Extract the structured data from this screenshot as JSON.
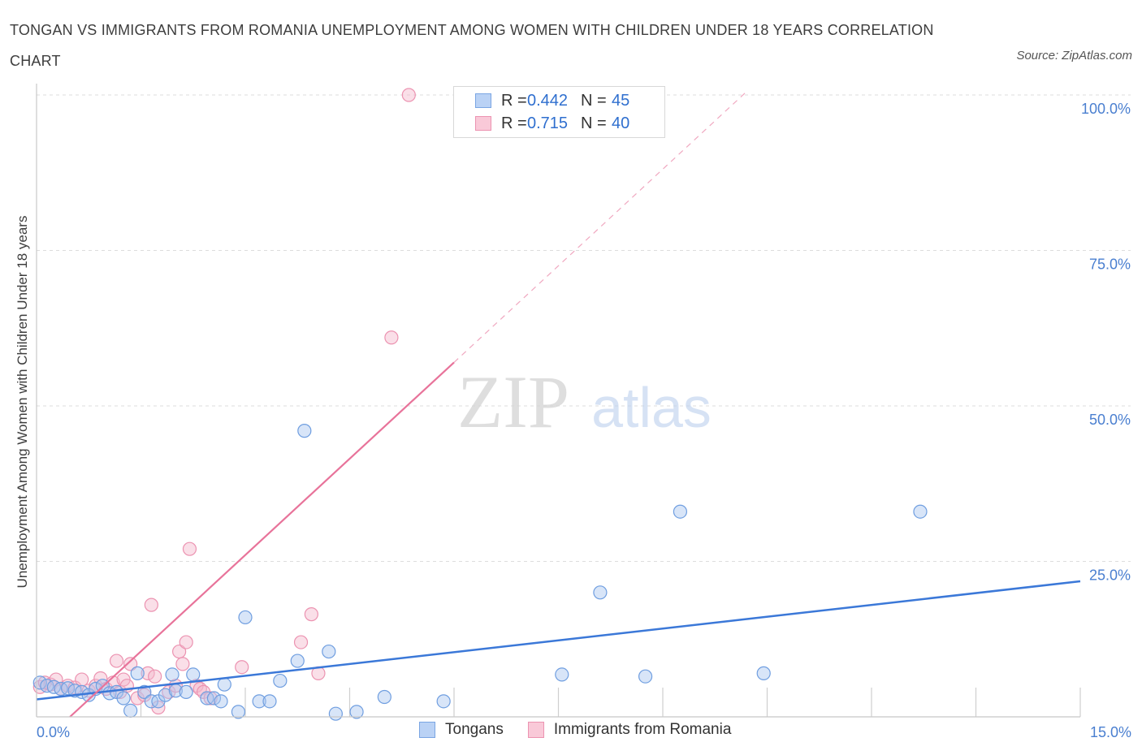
{
  "title": "TONGAN VS IMMIGRANTS FROM ROMANIA UNEMPLOYMENT AMONG WOMEN WITH CHILDREN UNDER 18 YEARS CORRELATION CHART",
  "source": "Source: ZipAtlas.com",
  "colors": {
    "blue": "#3b78d8",
    "blue_fill": "#a9c6f0",
    "pink": "#e8739a",
    "pink_fill": "#f4b7cb",
    "grid": "#dddddd",
    "axis_text": "#4a7fd0"
  },
  "legend": {
    "rows": [
      {
        "r_label": "R =",
        "r_value": "0.442",
        "n_label": "N =",
        "n_value": "45"
      },
      {
        "r_label": "R =",
        "r_value": "0.715",
        "n_label": "N =",
        "n_value": "40"
      }
    ]
  },
  "bottom_legend": {
    "tongans": "Tongans",
    "romania": "Immigrants from Romania"
  },
  "watermark": {
    "zip": "ZIP",
    "atlas": "atlas"
  },
  "chart_data": {
    "type": "scatter",
    "title": "TONGAN VS IMMIGRANTS FROM ROMANIA UNEMPLOYMENT AMONG WOMEN WITH CHILDREN UNDER 18 YEARS CORRELATION CHART",
    "xlabel": "",
    "ylabel": "Unemployment Among Women with Children Under 18 years",
    "xlim": [
      0,
      15
    ],
    "ylim": [
      0,
      100
    ],
    "x_tick_labels": [
      {
        "value": 0,
        "label": "0.0%"
      },
      {
        "value": 15,
        "label": "15.0%"
      }
    ],
    "y_tick_labels": [
      {
        "value": 100,
        "label": "100.0%"
      },
      {
        "value": 75,
        "label": "75.0%"
      },
      {
        "value": 50,
        "label": "50.0%"
      },
      {
        "value": 25,
        "label": "25.0%"
      }
    ],
    "series": [
      {
        "name": "Tongans",
        "R": 0.442,
        "N": 45,
        "trend": {
          "x0": 0,
          "y0": 2.8,
          "x1": 15,
          "y1": 21.8
        },
        "points": [
          [
            0.05,
            5.5
          ],
          [
            0.15,
            5.0
          ],
          [
            0.25,
            4.8
          ],
          [
            0.35,
            4.5
          ],
          [
            0.45,
            4.6
          ],
          [
            0.55,
            4.2
          ],
          [
            0.65,
            4.0
          ],
          [
            0.75,
            3.5
          ],
          [
            0.85,
            4.5
          ],
          [
            0.95,
            5.0
          ],
          [
            1.05,
            3.8
          ],
          [
            1.15,
            4.0
          ],
          [
            1.25,
            3.0
          ],
          [
            1.35,
            1.0
          ],
          [
            1.45,
            7.0
          ],
          [
            1.55,
            4.0
          ],
          [
            1.65,
            2.5
          ],
          [
            1.75,
            2.5
          ],
          [
            1.85,
            3.5
          ],
          [
            1.95,
            6.8
          ],
          [
            2.0,
            4.2
          ],
          [
            2.15,
            4.0
          ],
          [
            2.25,
            6.8
          ],
          [
            2.45,
            3.0
          ],
          [
            2.55,
            3.0
          ],
          [
            2.65,
            2.5
          ],
          [
            2.7,
            5.2
          ],
          [
            2.9,
            0.8
          ],
          [
            3.0,
            16.0
          ],
          [
            3.2,
            2.5
          ],
          [
            3.35,
            2.5
          ],
          [
            3.5,
            5.8
          ],
          [
            3.75,
            9.0
          ],
          [
            3.85,
            46.0
          ],
          [
            4.2,
            10.5
          ],
          [
            4.3,
            0.5
          ],
          [
            4.6,
            0.8
          ],
          [
            5.0,
            3.2
          ],
          [
            5.85,
            2.5
          ],
          [
            7.55,
            6.8
          ],
          [
            8.1,
            20.0
          ],
          [
            8.75,
            6.5
          ],
          [
            9.25,
            33.0
          ],
          [
            10.45,
            7.0
          ],
          [
            12.7,
            33.0
          ]
        ]
      },
      {
        "name": "Immigrants from Romania",
        "R": 0.715,
        "N": 40,
        "trend": {
          "x0": 0.48,
          "y0": 0,
          "x1": 6.0,
          "y1": 57.0
        },
        "trend_dashed": {
          "x0": 6.0,
          "y0": 57.0,
          "x1": 10.2,
          "y1": 100.5
        },
        "points": [
          [
            0.05,
            4.8
          ],
          [
            0.12,
            5.5
          ],
          [
            0.2,
            5.2
          ],
          [
            0.28,
            6.0
          ],
          [
            0.35,
            4.5
          ],
          [
            0.45,
            5.0
          ],
          [
            0.55,
            4.7
          ],
          [
            0.65,
            6.0
          ],
          [
            0.75,
            4.2
          ],
          [
            0.85,
            5.0
          ],
          [
            0.92,
            6.2
          ],
          [
            1.0,
            4.5
          ],
          [
            1.1,
            5.5
          ],
          [
            1.15,
            9.0
          ],
          [
            1.2,
            4.0
          ],
          [
            1.25,
            6.0
          ],
          [
            1.3,
            5.0
          ],
          [
            1.35,
            8.5
          ],
          [
            1.45,
            3.0
          ],
          [
            1.55,
            3.5
          ],
          [
            1.6,
            7.0
          ],
          [
            1.65,
            18.0
          ],
          [
            1.7,
            6.5
          ],
          [
            1.75,
            1.5
          ],
          [
            1.9,
            4.0
          ],
          [
            2.0,
            5.0
          ],
          [
            2.05,
            10.5
          ],
          [
            2.1,
            8.5
          ],
          [
            2.15,
            12.0
          ],
          [
            2.2,
            27.0
          ],
          [
            2.3,
            5.0
          ],
          [
            2.35,
            4.5
          ],
          [
            2.4,
            4.0
          ],
          [
            2.5,
            3.0
          ],
          [
            2.95,
            8.0
          ],
          [
            3.8,
            12.0
          ],
          [
            3.95,
            16.5
          ],
          [
            4.05,
            7.0
          ],
          [
            5.1,
            61.0
          ],
          [
            5.35,
            100.0
          ]
        ]
      }
    ]
  }
}
